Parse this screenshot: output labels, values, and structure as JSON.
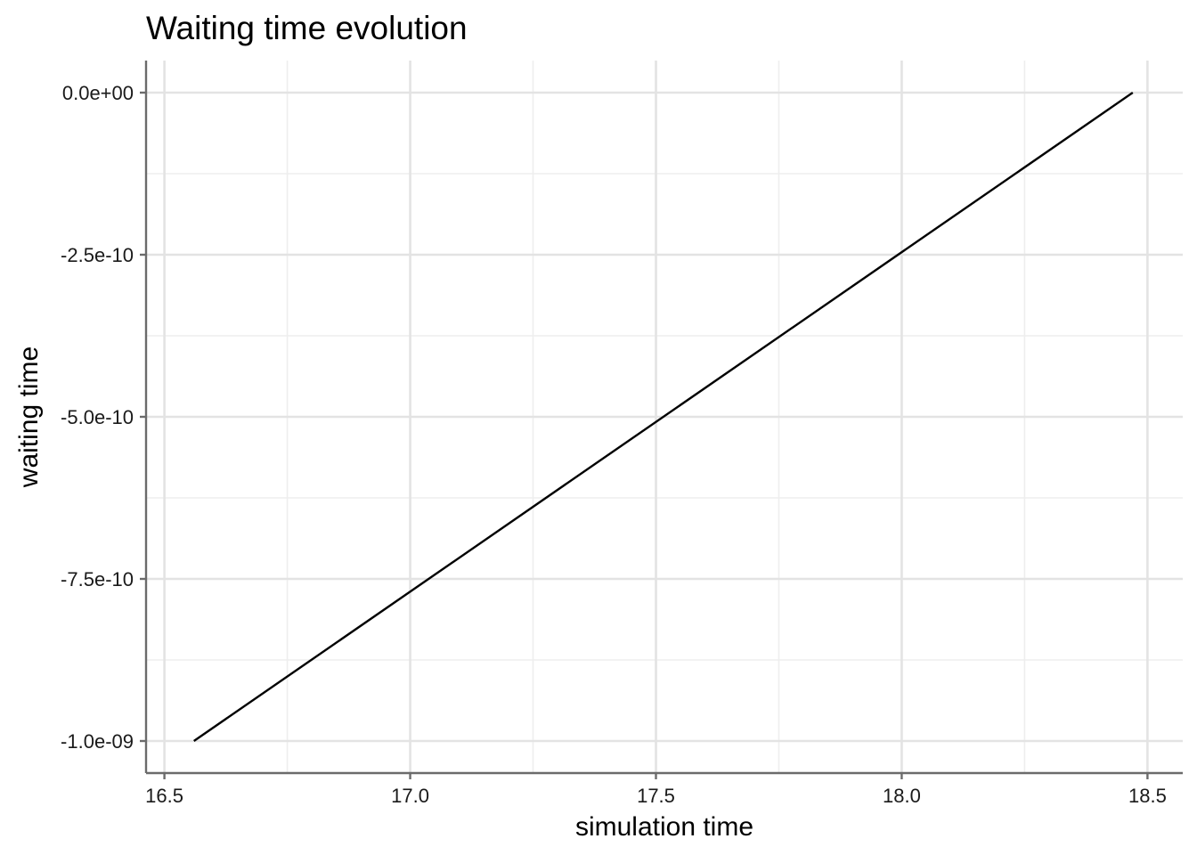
{
  "chart_data": {
    "type": "line",
    "title": "Waiting time evolution",
    "xlabel": "simulation time",
    "ylabel": "waiting time",
    "xlim": [
      16.5,
      18.5
    ],
    "ylim": [
      -1e-09,
      0
    ],
    "x_ticks": [
      16.5,
      17.0,
      17.5,
      18.0,
      18.5
    ],
    "x_tick_labels": [
      "16.5",
      "17.0",
      "17.5",
      "18.0",
      "18.5"
    ],
    "y_ticks": [
      0,
      -2.5e-10,
      -5e-10,
      -7.5e-10,
      -1e-09
    ],
    "y_tick_labels": [
      "0.0e+00",
      "-2.5e-10",
      "-5.0e-10",
      "-7.5e-10",
      "-1.0e-09"
    ],
    "grid": true,
    "legend": "none",
    "series": [
      {
        "color": "#000000",
        "x": [
          16.56,
          18.47
        ],
        "y": [
          -1e-09,
          0
        ]
      }
    ]
  }
}
